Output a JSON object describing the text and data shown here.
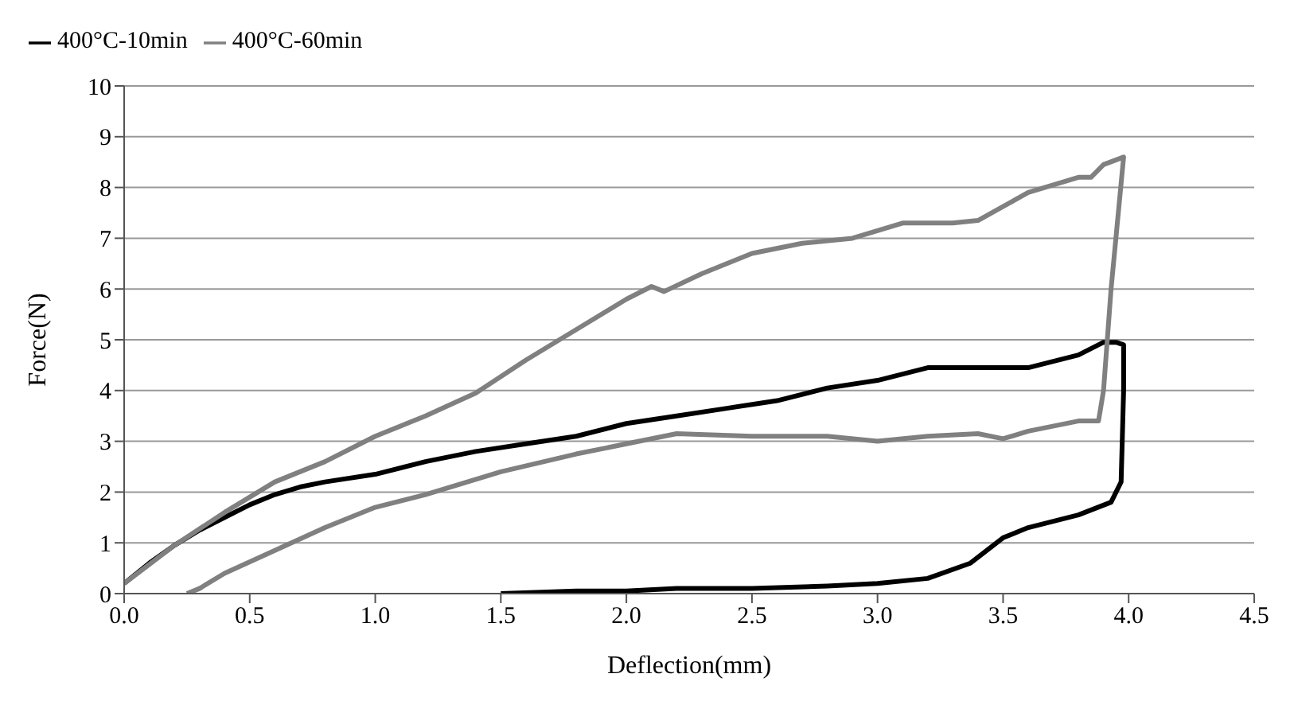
{
  "chart_data": {
    "type": "line",
    "xlabel": "Deflection(mm)",
    "ylabel": "Force(N)",
    "xlim": [
      0,
      4.5
    ],
    "xticks": [
      {
        "value": 0,
        "label": "0.0"
      },
      0.5,
      {
        "value": 1,
        "label": "1.0"
      },
      1.5,
      {
        "value": 2,
        "label": "2.0"
      },
      2.5,
      {
        "value": 3,
        "label": "3.0"
      },
      3.5,
      {
        "value": 4,
        "label": "4.0"
      },
      4.5
    ],
    "ylim": [
      0,
      10
    ],
    "yticks": [
      0,
      1,
      2,
      3,
      4,
      5,
      6,
      7,
      8,
      9,
      10
    ],
    "grid": "y",
    "legend": "top",
    "marker": "none",
    "line_style": "solid",
    "series": [
      {
        "name": "400°C-10min",
        "color": "#000000",
        "x": [
          0,
          0.1,
          0.2,
          0.3,
          0.4,
          0.5,
          0.6,
          0.7,
          0.8,
          1.0,
          1.2,
          1.4,
          1.6,
          1.8,
          2.0,
          2.2,
          2.4,
          2.6,
          2.8,
          3.0,
          3.2,
          3.4,
          3.6,
          3.8,
          3.9,
          3.95,
          3.98,
          3.98,
          3.97,
          3.93,
          3.8,
          3.6,
          3.5,
          3.37,
          3.2,
          3.0,
          2.8,
          2.5,
          2.2,
          2.0,
          1.8,
          1.5
        ],
        "values": [
          0.2,
          0.6,
          0.95,
          1.25,
          1.5,
          1.75,
          1.95,
          2.1,
          2.2,
          2.35,
          2.6,
          2.8,
          2.95,
          3.1,
          3.35,
          3.5,
          3.65,
          3.8,
          4.05,
          4.2,
          4.45,
          4.45,
          4.45,
          4.7,
          4.95,
          4.95,
          4.9,
          4,
          2.2,
          1.8,
          1.55,
          1.3,
          1.1,
          0.6,
          0.3,
          0.2,
          0.15,
          0.1,
          0.1,
          0.05,
          0.05,
          0
        ]
      },
      {
        "name": "400°C-60min",
        "color": "#808080",
        "x": [
          0,
          0.2,
          0.4,
          0.6,
          0.7,
          0.8,
          1.0,
          1.2,
          1.4,
          1.6,
          1.8,
          2.0,
          2.1,
          2.15,
          2.3,
          2.5,
          2.7,
          2.9,
          3.1,
          3.3,
          3.4,
          3.6,
          3.8,
          3.85,
          3.9,
          3.98,
          3.93,
          3.9,
          3.88,
          3.8,
          3.6,
          3.5,
          3.4,
          3.2,
          3.0,
          2.8,
          2.5,
          2.2,
          2.0,
          1.8,
          1.5,
          1.2,
          1.0,
          0.8,
          0.6,
          0.4,
          0.3,
          0.25
        ],
        "values": [
          0.2,
          0.95,
          1.6,
          2.2,
          2.4,
          2.6,
          3.1,
          3.5,
          3.95,
          4.6,
          5.2,
          5.8,
          6.05,
          5.95,
          6.3,
          6.7,
          6.9,
          7.0,
          7.3,
          7.3,
          7.35,
          7.9,
          8.2,
          8.2,
          8.45,
          8.6,
          6,
          4,
          3.4,
          3.4,
          3.2,
          3.05,
          3.15,
          3.1,
          3.0,
          3.1,
          3.1,
          3.15,
          2.95,
          2.75,
          2.4,
          1.95,
          1.7,
          1.3,
          0.85,
          0.4,
          0.1,
          0
        ]
      }
    ]
  }
}
